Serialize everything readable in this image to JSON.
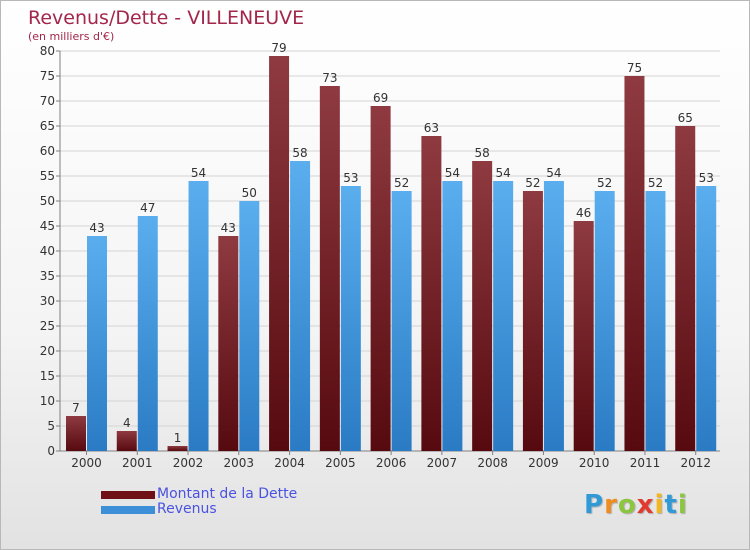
{
  "chart_data": {
    "type": "bar",
    "title": "Revenus/Dette - VILLENEUVE",
    "subtitle": "(en milliers d'€)",
    "xlabel": "",
    "ylabel": "",
    "ylim": [
      0,
      80
    ],
    "yticks": [
      0,
      5,
      10,
      15,
      20,
      25,
      30,
      35,
      40,
      45,
      50,
      55,
      60,
      65,
      70,
      75,
      80
    ],
    "grid": true,
    "legend_position": "bottom-left",
    "categories": [
      "2000",
      "2001",
      "2002",
      "2003",
      "2004",
      "2005",
      "2006",
      "2007",
      "2008",
      "2009",
      "2010",
      "2011",
      "2012"
    ],
    "series": [
      {
        "name": "Montant de la Dette",
        "color": "#6e1016",
        "values": [
          7,
          4,
          1,
          43,
          79,
          73,
          69,
          63,
          58,
          52,
          46,
          75,
          65
        ]
      },
      {
        "name": "Revenus",
        "color": "#3d8fd8",
        "values": [
          43,
          47,
          54,
          50,
          58,
          53,
          52,
          54,
          54,
          54,
          52,
          52,
          53
        ]
      }
    ]
  },
  "logo": {
    "text": "Proxiti",
    "letters": [
      {
        "char": "P",
        "color": "#2f9ad6"
      },
      {
        "char": "r",
        "color": "#f08c1e"
      },
      {
        "char": "o",
        "color": "#8cc63f"
      },
      {
        "char": "x",
        "color": "#e23a2e"
      },
      {
        "char": "i",
        "color": "#f3b61f"
      },
      {
        "char": "t",
        "color": "#2f9ad6"
      },
      {
        "char": "i",
        "color": "#8cc63f"
      }
    ]
  }
}
